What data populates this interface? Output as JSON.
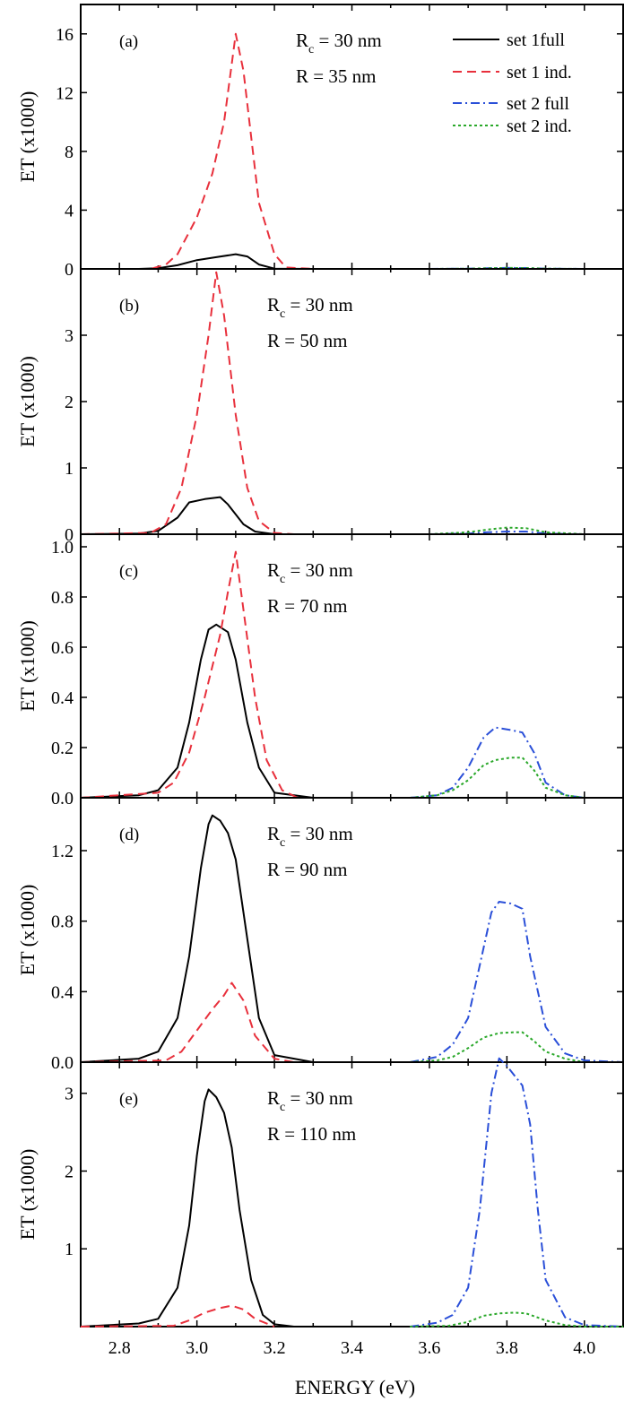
{
  "chart_data": {
    "type": "line",
    "xlabel": "ENERGY (eV)",
    "xlim": [
      2.7,
      4.1
    ],
    "xticks": [
      2.8,
      3.0,
      3.2,
      3.4,
      3.6,
      3.8,
      4.0
    ],
    "xtick_labels": [
      "2.8",
      "3.0",
      "3.2",
      "3.4",
      "3.6",
      "3.8",
      "4.0"
    ],
    "legend": {
      "position": "top-right of panel (a)",
      "entries": [
        {
          "label": "set 1full",
          "style": "solid",
          "color": "#000000"
        },
        {
          "label": "set 1 ind.",
          "style": "dash",
          "color": "#e8303c"
        },
        {
          "label": "set 2 full",
          "style": "dashdot",
          "color": "#2a4fd8"
        },
        {
          "label": "set 2 ind.",
          "style": "dot",
          "color": "#2aa82a"
        }
      ]
    },
    "panels": [
      {
        "tag": "(a)",
        "annot_rc": "R",
        "annot_rc_sub": "c",
        "annot_rc_value": " = 30 nm",
        "annot_r": "R = 35 nm",
        "ylabel": "ET  (x1000)",
        "ylim": [
          0,
          18
        ],
        "yticks": [
          0,
          4,
          8,
          12,
          16
        ],
        "ytick_labels": [
          "0",
          "4",
          "8",
          "12",
          "16"
        ],
        "series": [
          {
            "name": "set 1full",
            "x": [
              2.7,
              2.85,
              2.9,
              2.95,
              3.0,
              3.05,
              3.1,
              3.13,
              3.16,
              3.2,
              3.3
            ],
            "y": [
              0,
              0,
              0.05,
              0.25,
              0.6,
              0.8,
              1.0,
              0.85,
              0.3,
              0.02,
              0
            ]
          },
          {
            "name": "set 1 ind.",
            "x": [
              2.7,
              2.88,
              2.92,
              2.95,
              3.0,
              3.04,
              3.07,
              3.1,
              3.12,
              3.14,
              3.16,
              3.2,
              3.23,
              3.3
            ],
            "y": [
              0,
              0,
              0.3,
              1.0,
              3.5,
              6.5,
              10.0,
              16.0,
              13.5,
              9.0,
              4.5,
              1.0,
              0.1,
              0
            ]
          },
          {
            "name": "set 2 full",
            "x": [
              3.6,
              3.7,
              3.75,
              3.8,
              3.85,
              3.9,
              4.0
            ],
            "y": [
              0,
              0.02,
              0.05,
              0.07,
              0.06,
              0.02,
              0
            ]
          },
          {
            "name": "set 2 ind.",
            "x": [
              3.6,
              3.7,
              3.75,
              3.8,
              3.85,
              3.9,
              4.0
            ],
            "y": [
              0,
              0.02,
              0.05,
              0.07,
              0.06,
              0.02,
              0
            ]
          }
        ]
      },
      {
        "tag": "(b)",
        "annot_rc": "R",
        "annot_rc_sub": "c",
        "annot_rc_value": " = 30 nm",
        "annot_r": "R = 50 nm",
        "ylabel": "ET  (x1000)",
        "ylim": [
          0,
          4
        ],
        "yticks": [
          0,
          1,
          2,
          3
        ],
        "ytick_labels": [
          "0",
          "1",
          "2",
          "3"
        ],
        "series": [
          {
            "name": "set 1full",
            "x": [
              2.7,
              2.85,
              2.9,
              2.95,
              2.98,
              3.02,
              3.06,
              3.08,
              3.12,
              3.15,
              3.2,
              3.3
            ],
            "y": [
              0,
              0.01,
              0.05,
              0.25,
              0.48,
              0.53,
              0.56,
              0.45,
              0.15,
              0.04,
              0,
              0
            ]
          },
          {
            "name": "set 1 ind.",
            "x": [
              2.7,
              2.88,
              2.92,
              2.96,
              3.0,
              3.03,
              3.05,
              3.07,
              3.1,
              3.13,
              3.16,
              3.2,
              3.25
            ],
            "y": [
              0,
              0.02,
              0.15,
              0.7,
              1.8,
              3.0,
              3.95,
              3.3,
              1.8,
              0.7,
              0.2,
              0.02,
              0
            ]
          },
          {
            "name": "set 2 full",
            "x": [
              3.6,
              3.7,
              3.75,
              3.8,
              3.85,
              3.9,
              4.0
            ],
            "y": [
              0,
              0.01,
              0.03,
              0.04,
              0.04,
              0.01,
              0
            ]
          },
          {
            "name": "set 2 ind.",
            "x": [
              3.6,
              3.7,
              3.75,
              3.8,
              3.85,
              3.9,
              4.0
            ],
            "y": [
              0,
              0.03,
              0.07,
              0.1,
              0.09,
              0.03,
              0
            ]
          }
        ]
      },
      {
        "tag": "(c)",
        "annot_rc": "R",
        "annot_rc_sub": "c",
        "annot_rc_value": " = 30 nm",
        "annot_r": "R = 70 nm",
        "ylabel": "ET  (x1000)",
        "ylim": [
          0,
          1.05
        ],
        "yticks": [
          0.0,
          0.2,
          0.4,
          0.6,
          0.8,
          1.0
        ],
        "ytick_labels": [
          "0.0",
          "0.2",
          "0.4",
          "0.6",
          "0.8",
          "1.0"
        ],
        "series": [
          {
            "name": "set 1full",
            "x": [
              2.7,
              2.85,
              2.9,
              2.95,
              2.98,
              3.01,
              3.03,
              3.05,
              3.08,
              3.1,
              3.13,
              3.16,
              3.2,
              3.3
            ],
            "y": [
              0,
              0.01,
              0.03,
              0.12,
              0.3,
              0.55,
              0.67,
              0.69,
              0.66,
              0.55,
              0.3,
              0.12,
              0.02,
              0
            ]
          },
          {
            "name": "set 1 ind.",
            "x": [
              2.7,
              2.9,
              2.94,
              2.98,
              3.02,
              3.06,
              3.08,
              3.1,
              3.12,
              3.15,
              3.18,
              3.22,
              3.26
            ],
            "y": [
              0,
              0.02,
              0.06,
              0.18,
              0.4,
              0.65,
              0.82,
              0.98,
              0.75,
              0.4,
              0.15,
              0.03,
              0
            ]
          },
          {
            "name": "set 2 full",
            "x": [
              3.55,
              3.62,
              3.66,
              3.7,
              3.74,
              3.77,
              3.81,
              3.84,
              3.87,
              3.9,
              3.95,
              4.0,
              4.1
            ],
            "y": [
              0,
              0.01,
              0.04,
              0.12,
              0.24,
              0.28,
              0.27,
              0.26,
              0.18,
              0.06,
              0.01,
              0,
              0
            ]
          },
          {
            "name": "set 2 ind.",
            "x": [
              3.55,
              3.62,
              3.66,
              3.7,
              3.74,
              3.77,
              3.81,
              3.84,
              3.87,
              3.9,
              3.95,
              4.0,
              4.1
            ],
            "y": [
              0,
              0.01,
              0.03,
              0.07,
              0.13,
              0.15,
              0.16,
              0.16,
              0.11,
              0.04,
              0.01,
              0,
              0
            ]
          }
        ]
      },
      {
        "tag": "(d)",
        "annot_rc": "R",
        "annot_rc_sub": "c",
        "annot_rc_value": " = 30 nm",
        "annot_r": "R = 90 nm",
        "ylabel": "ET  (x1000)",
        "ylim": [
          0,
          1.5
        ],
        "yticks": [
          0.0,
          0.4,
          0.8,
          1.2
        ],
        "ytick_labels": [
          "0.0",
          "0.4",
          "0.8",
          "1.2"
        ],
        "series": [
          {
            "name": "set 1full",
            "x": [
              2.7,
              2.85,
              2.9,
              2.95,
              2.98,
              3.01,
              3.03,
              3.04,
              3.06,
              3.08,
              3.1,
              3.13,
              3.16,
              3.2,
              3.3
            ],
            "y": [
              0,
              0.02,
              0.06,
              0.25,
              0.6,
              1.1,
              1.35,
              1.4,
              1.37,
              1.3,
              1.15,
              0.7,
              0.25,
              0.04,
              0
            ]
          },
          {
            "name": "set 1 ind.",
            "x": [
              2.7,
              2.92,
              2.96,
              3.0,
              3.04,
              3.07,
              3.09,
              3.12,
              3.15,
              3.2,
              3.25
            ],
            "y": [
              0,
              0.01,
              0.06,
              0.18,
              0.3,
              0.38,
              0.45,
              0.35,
              0.15,
              0.02,
              0
            ]
          },
          {
            "name": "set 2 full",
            "x": [
              3.55,
              3.62,
              3.66,
              3.7,
              3.73,
              3.76,
              3.78,
              3.81,
              3.84,
              3.86,
              3.9,
              3.95,
              4.0,
              4.1
            ],
            "y": [
              0,
              0.03,
              0.1,
              0.25,
              0.55,
              0.85,
              0.91,
              0.9,
              0.87,
              0.6,
              0.2,
              0.05,
              0.01,
              0
            ]
          },
          {
            "name": "set 2 ind.",
            "x": [
              3.55,
              3.62,
              3.66,
              3.7,
              3.74,
              3.78,
              3.82,
              3.84,
              3.87,
              3.9,
              3.95,
              4.0,
              4.1
            ],
            "y": [
              0,
              0.01,
              0.03,
              0.08,
              0.14,
              0.165,
              0.17,
              0.17,
              0.12,
              0.06,
              0.02,
              0,
              0
            ]
          }
        ]
      },
      {
        "tag": "(e)",
        "annot_rc": "R",
        "annot_rc_sub": "c",
        "annot_rc_value": " = 30 nm",
        "annot_r": "R = 110 nm",
        "ylabel": "ET  (x1000)",
        "ylim": [
          0,
          3.4
        ],
        "yticks": [
          1,
          2,
          3
        ],
        "ytick_labels": [
          "1",
          "2",
          "3"
        ],
        "series": [
          {
            "name": "set 1full",
            "x": [
              2.7,
              2.85,
              2.9,
              2.95,
              2.98,
              3.0,
              3.02,
              3.03,
              3.05,
              3.07,
              3.09,
              3.11,
              3.14,
              3.17,
              3.2,
              3.25,
              3.3
            ],
            "y": [
              0,
              0.04,
              0.1,
              0.5,
              1.3,
              2.2,
              2.9,
              3.05,
              2.95,
              2.75,
              2.3,
              1.5,
              0.6,
              0.15,
              0.03,
              0,
              0
            ]
          },
          {
            "name": "set 1 ind.",
            "x": [
              2.7,
              2.94,
              2.98,
              3.02,
              3.06,
              3.09,
              3.12,
              3.15,
              3.2
            ],
            "y": [
              0,
              0.01,
              0.08,
              0.18,
              0.24,
              0.27,
              0.22,
              0.1,
              0
            ]
          },
          {
            "name": "set 2 full",
            "x": [
              3.55,
              3.62,
              3.66,
              3.7,
              3.73,
              3.76,
              3.78,
              3.8,
              3.84,
              3.86,
              3.88,
              3.9,
              3.95,
              4.0,
              4.1
            ],
            "y": [
              0,
              0.05,
              0.15,
              0.5,
              1.5,
              3.0,
              3.45,
              3.35,
              3.1,
              2.6,
              1.5,
              0.6,
              0.12,
              0.02,
              0
            ]
          },
          {
            "name": "set 2 ind.",
            "x": [
              3.55,
              3.65,
              3.7,
              3.74,
              3.78,
              3.82,
              3.85,
              3.9,
              3.95,
              4.0,
              4.1
            ],
            "y": [
              0,
              0.01,
              0.06,
              0.14,
              0.17,
              0.18,
              0.17,
              0.08,
              0.02,
              0,
              0
            ]
          }
        ]
      }
    ]
  }
}
